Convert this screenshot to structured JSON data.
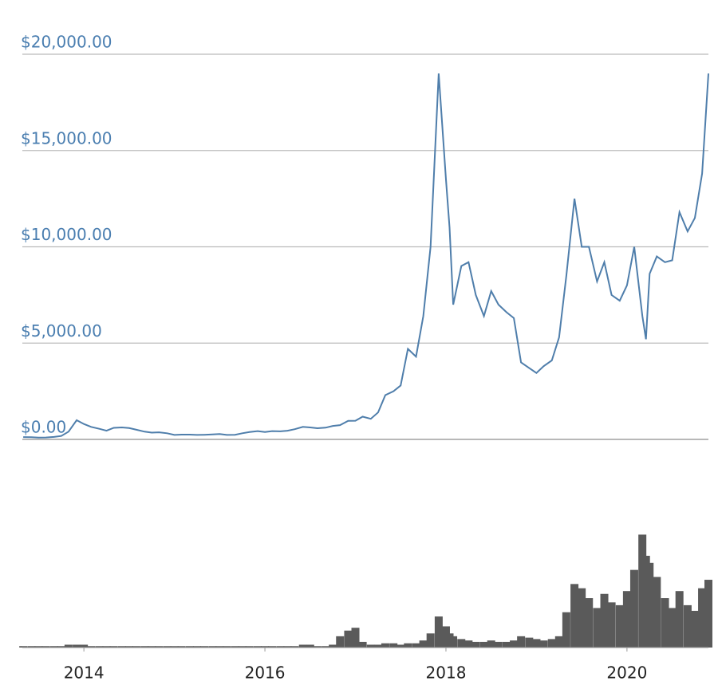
{
  "chart_data": [
    {
      "type": "line",
      "x": [
        2013.33,
        2013.42,
        2013.5,
        2013.58,
        2013.67,
        2013.75,
        2013.83,
        2013.92,
        2014.0,
        2014.08,
        2014.17,
        2014.25,
        2014.33,
        2014.42,
        2014.5,
        2014.58,
        2014.67,
        2014.75,
        2014.83,
        2014.92,
        2015.0,
        2015.08,
        2015.17,
        2015.25,
        2015.33,
        2015.42,
        2015.5,
        2015.58,
        2015.67,
        2015.75,
        2015.83,
        2015.92,
        2016.0,
        2016.08,
        2016.17,
        2016.25,
        2016.33,
        2016.42,
        2016.5,
        2016.58,
        2016.67,
        2016.75,
        2016.83,
        2016.92,
        2017.0,
        2017.08,
        2017.17,
        2017.25,
        2017.33,
        2017.42,
        2017.5,
        2017.58,
        2017.67,
        2017.75,
        2017.83,
        2017.92,
        2018.0,
        2018.04,
        2018.08,
        2018.17,
        2018.25,
        2018.33,
        2018.42,
        2018.5,
        2018.58,
        2018.67,
        2018.75,
        2018.83,
        2018.92,
        2019.0,
        2019.08,
        2019.17,
        2019.25,
        2019.33,
        2019.42,
        2019.5,
        2019.58,
        2019.67,
        2019.75,
        2019.83,
        2019.92,
        2020.0,
        2020.08,
        2020.17,
        2020.21,
        2020.25,
        2020.33,
        2020.42,
        2020.5,
        2020.58,
        2020.67,
        2020.75,
        2020.83,
        2020.9
      ],
      "series": [
        {
          "color": "#4f7eab",
          "values": [
            120,
            110,
            90,
            100,
            130,
            180,
            400,
            1000,
            800,
            650,
            550,
            450,
            600,
            620,
            590,
            500,
            400,
            350,
            370,
            320,
            230,
            250,
            250,
            230,
            240,
            260,
            280,
            230,
            240,
            320,
            380,
            430,
            380,
            430,
            420,
            450,
            530,
            650,
            620,
            580,
            610,
            700,
            740,
            960,
            970,
            1180,
            1070,
            1400,
            2300,
            2500,
            2800,
            4700,
            4300,
            6400,
            10000,
            19000,
            13500,
            11000,
            7000,
            9000,
            9200,
            7500,
            6400,
            7700,
            7000,
            6600,
            6300,
            4000,
            3700,
            3450,
            3800,
            4100,
            5300,
            8500,
            12500,
            10000,
            10000,
            8200,
            9200,
            7500,
            7200,
            8000,
            10000,
            6400,
            5200,
            8600,
            9500,
            9200,
            9300,
            11800,
            10800,
            11500,
            13800,
            19000
          ]
        }
      ],
      "xlim": [
        2013.32,
        2020.9
      ],
      "ylim": [
        0,
        20000
      ],
      "yticks": [
        {
          "value": 0,
          "label": "$0.00"
        },
        {
          "value": 5000,
          "label": "$5,000.00"
        },
        {
          "value": 10000,
          "label": "$10,000.00"
        },
        {
          "value": 15000,
          "label": "$15,000.00"
        },
        {
          "value": 20000,
          "label": "$20,000.00"
        }
      ],
      "grid": true
    },
    {
      "type": "bar",
      "x": [
        2013.33,
        2013.42,
        2013.5,
        2013.58,
        2013.67,
        2013.75,
        2013.83,
        2013.92,
        2014.0,
        2014.08,
        2014.17,
        2014.25,
        2014.33,
        2014.42,
        2014.5,
        2014.58,
        2014.67,
        2014.75,
        2014.83,
        2014.92,
        2015.0,
        2015.08,
        2015.17,
        2015.25,
        2015.33,
        2015.42,
        2015.5,
        2015.58,
        2015.67,
        2015.75,
        2015.83,
        2015.92,
        2016.0,
        2016.08,
        2016.17,
        2016.25,
        2016.33,
        2016.42,
        2016.5,
        2016.58,
        2016.67,
        2016.75,
        2016.83,
        2016.92,
        2017.0,
        2017.08,
        2017.17,
        2017.25,
        2017.33,
        2017.42,
        2017.5,
        2017.58,
        2017.67,
        2017.75,
        2017.83,
        2017.92,
        2018.0,
        2018.04,
        2018.08,
        2018.17,
        2018.25,
        2018.33,
        2018.42,
        2018.5,
        2018.58,
        2018.67,
        2018.75,
        2018.83,
        2018.92,
        2019.0,
        2019.08,
        2019.17,
        2019.25,
        2019.33,
        2019.42,
        2019.5,
        2019.58,
        2019.67,
        2019.75,
        2019.83,
        2019.92,
        2020.0,
        2020.08,
        2020.17,
        2020.21,
        2020.25,
        2020.33,
        2020.42,
        2020.5,
        2020.58,
        2020.67,
        2020.75,
        2020.83,
        2020.9
      ],
      "values": [
        1,
        1,
        1,
        1,
        1,
        1,
        2,
        2,
        2,
        1,
        1,
        1,
        1,
        1,
        1,
        1,
        1,
        1,
        1,
        1,
        1,
        1,
        1,
        1,
        1,
        1,
        1,
        1,
        1,
        1,
        1,
        1,
        1,
        1,
        1,
        1,
        1,
        2,
        2,
        1,
        1,
        2,
        8,
        12,
        14,
        4,
        2,
        2,
        3,
        3,
        2,
        3,
        3,
        5,
        10,
        22,
        15,
        10,
        8,
        6,
        5,
        4,
        4,
        5,
        4,
        4,
        5,
        8,
        7,
        6,
        5,
        6,
        8,
        25,
        45,
        42,
        35,
        28,
        38,
        32,
        30,
        40,
        55,
        80,
        65,
        60,
        50,
        35,
        28,
        40,
        30,
        26,
        42,
        48
      ],
      "color": "#5a5a5a",
      "xlim": [
        2013.32,
        2020.9
      ],
      "ylim": [
        0,
        100
      ],
      "xticks": [
        2014,
        2016,
        2018,
        2020
      ]
    }
  ]
}
